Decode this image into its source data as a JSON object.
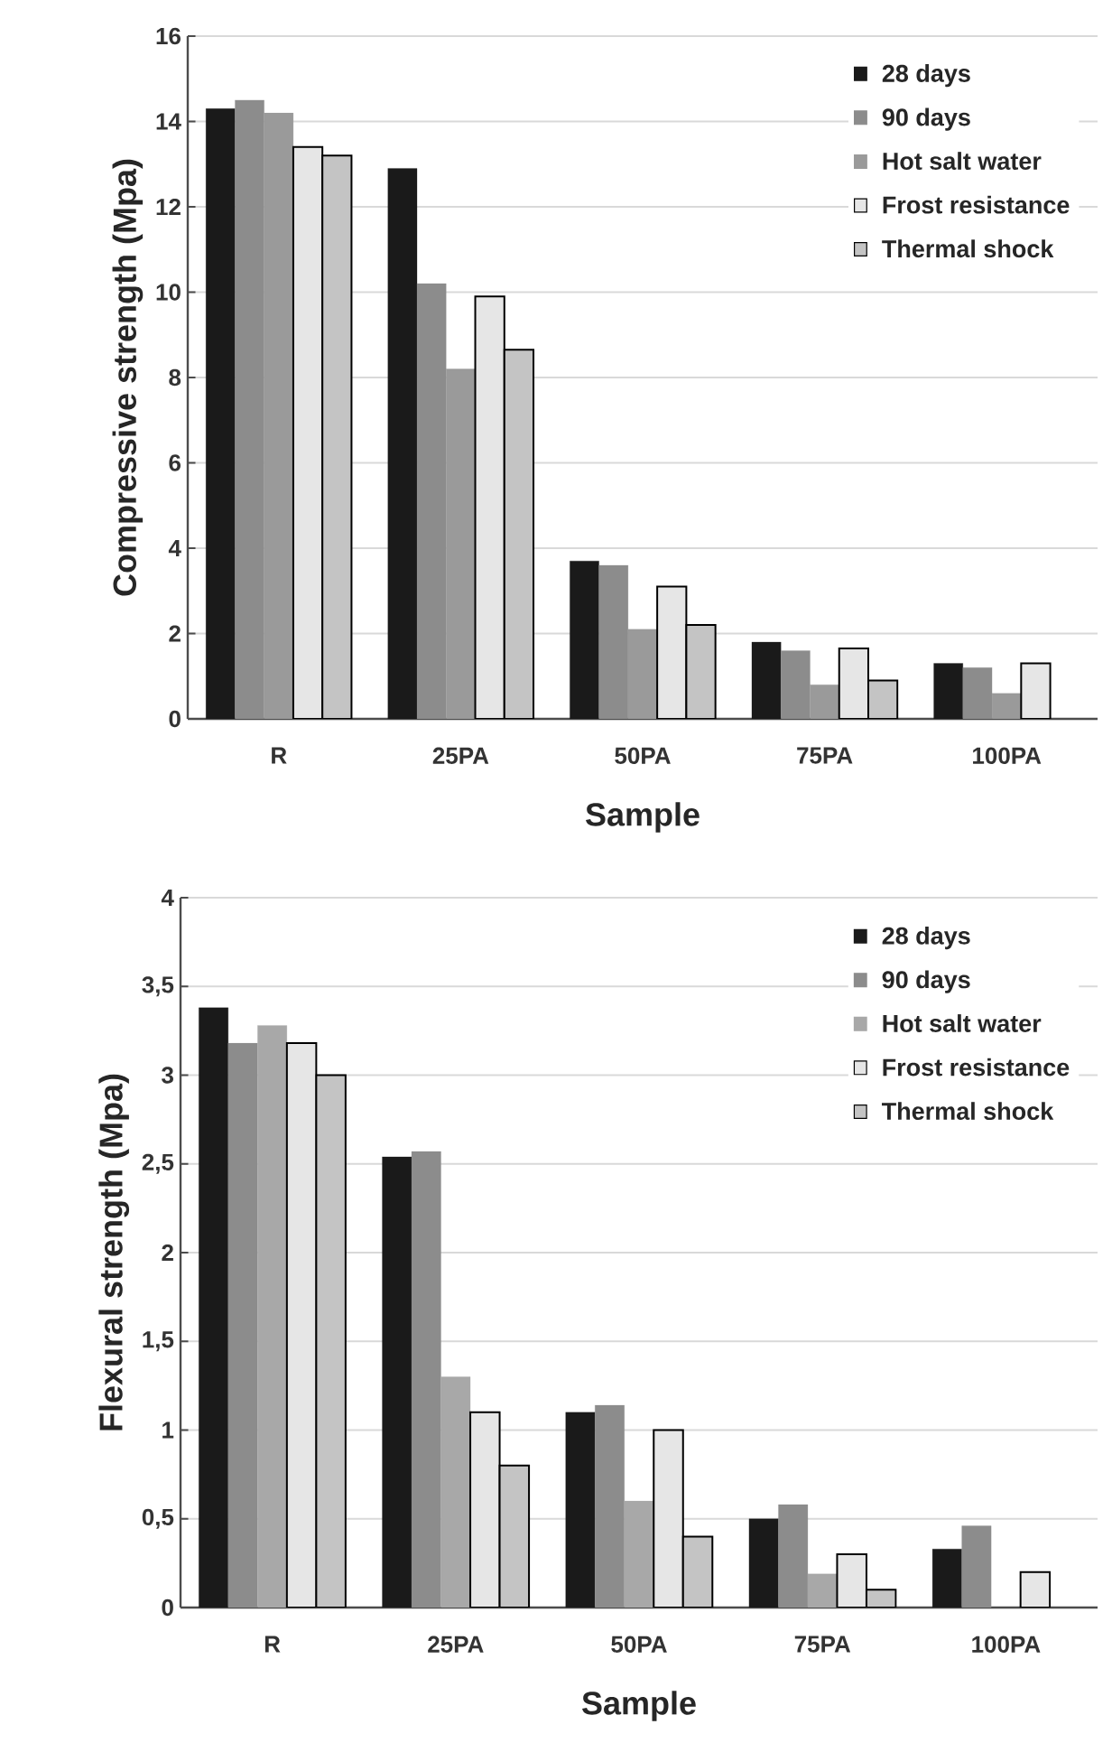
{
  "chart_data": [
    {
      "type": "bar",
      "xlabel": "Sample",
      "ylabel": "Compressive strength  (Mpa)",
      "categories": [
        "R",
        "25PA",
        "50PA",
        "75PA",
        "100PA"
      ],
      "series": [
        {
          "name": "28 days",
          "color": "#1a1a1a",
          "values": [
            14.3,
            12.9,
            3.7,
            1.8,
            1.3
          ]
        },
        {
          "name": "90 days",
          "color": "#8c8c8c",
          "values": [
            14.5,
            10.2,
            3.6,
            1.6,
            1.2
          ]
        },
        {
          "name": "Hot salt water",
          "color": "#9a9a9a",
          "values": [
            14.2,
            8.2,
            2.1,
            0.8,
            0.6
          ]
        },
        {
          "name": "Frost resistance",
          "color": "#e6e6e6",
          "values": [
            13.4,
            9.9,
            3.1,
            1.65,
            1.3
          ]
        },
        {
          "name": "Thermal shock",
          "color": "#c4c4c4",
          "values": [
            13.2,
            8.65,
            2.2,
            0.9,
            null
          ]
        }
      ],
      "ylim": [
        0,
        16
      ],
      "yticks": [
        0,
        2,
        4,
        6,
        8,
        10,
        12,
        14,
        16
      ],
      "grid": "y",
      "legend": "top right"
    },
    {
      "type": "bar",
      "xlabel": "Sample",
      "ylabel": "Flexural strength (Mpa)",
      "categories": [
        "R",
        "25PA",
        "50PA",
        "75PA",
        "100PA"
      ],
      "series": [
        {
          "name": "28 days",
          "color": "#1a1a1a",
          "values": [
            3.38,
            2.54,
            1.1,
            0.5,
            0.33
          ]
        },
        {
          "name": "90 days",
          "color": "#8c8c8c",
          "values": [
            3.18,
            2.57,
            1.14,
            0.58,
            0.46
          ]
        },
        {
          "name": "Hot salt water",
          "color": "#a8a8a8",
          "values": [
            3.28,
            1.3,
            0.6,
            0.19,
            null
          ]
        },
        {
          "name": "Frost resistance",
          "color": "#e6e6e6",
          "values": [
            3.18,
            1.1,
            1.0,
            0.3,
            0.2
          ]
        },
        {
          "name": "Thermal shock",
          "color": "#c4c4c4",
          "values": [
            3.0,
            0.8,
            0.4,
            0.1,
            null
          ]
        }
      ],
      "ylim": [
        0,
        4
      ],
      "yticks": [
        0,
        {
          "value": 0.5,
          "label": "0,5"
        },
        1,
        {
          "value": 1.5,
          "label": "1,5"
        },
        2,
        {
          "value": 2.5,
          "label": "2,5"
        },
        3,
        {
          "value": 3.5,
          "label": "3,5"
        },
        4
      ],
      "grid": "y",
      "legend": "top right"
    }
  ]
}
